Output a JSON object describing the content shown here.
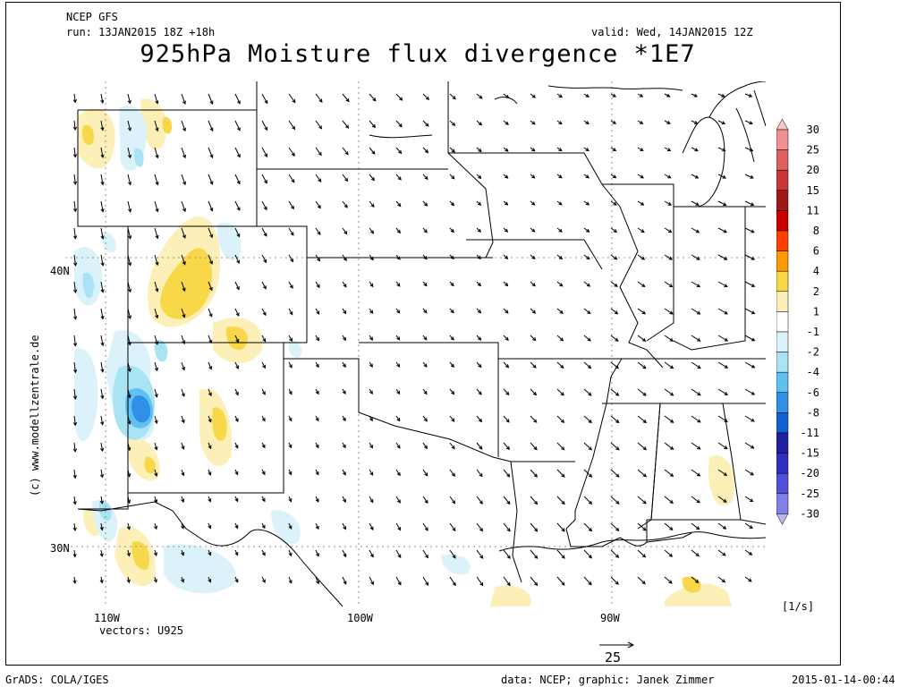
{
  "header": {
    "model": "NCEP GFS",
    "run": "run: 13JAN2015 18Z +18h",
    "valid": "valid: Wed, 14JAN2015 12Z",
    "title": "925hPa Moisture flux divergence *1E7"
  },
  "axes": {
    "lon_labels": [
      "110W",
      "100W",
      "90W"
    ],
    "lat_labels": [
      "40N",
      "30N"
    ]
  },
  "vectors_label": "vectors: U925",
  "scale_value": "25",
  "units": "[1/s]",
  "credit_side": "(c) www.modellzentrale.de",
  "footer": {
    "left": "GrADS: COLA/IGES",
    "center": "data: NCEP; graphic: Janek Zimmer",
    "right": "2015-01-14-00:44"
  },
  "colorbar": {
    "labels": [
      "30",
      "25",
      "20",
      "15",
      "11",
      "8",
      "6",
      "4",
      "2",
      "1",
      "-1",
      "-2",
      "-4",
      "-6",
      "-8",
      "-11",
      "-15",
      "-20",
      "-25",
      "-30"
    ],
    "colors": [
      "#f8c8c8",
      "#f09090",
      "#e06060",
      "#c83838",
      "#a01818",
      "#c80000",
      "#ff4000",
      "#ff9900",
      "#f8d848",
      "#fcf0b8",
      "#ffffff",
      "#dcf2fb",
      "#a8e4f4",
      "#60c0f0",
      "#3090e8",
      "#1060d0",
      "#2020a0",
      "#3030c0",
      "#5050d8",
      "#8080e8",
      "#b8b8f0"
    ]
  }
}
